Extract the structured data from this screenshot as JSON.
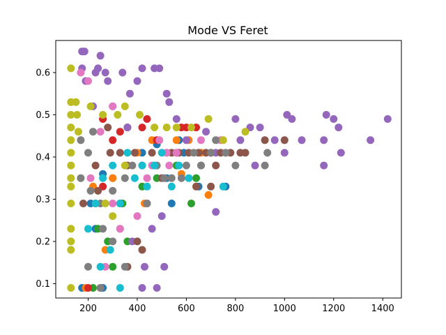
{
  "chart_data": {
    "type": "scatter",
    "title": "Mode VS Feret",
    "xlabel": "",
    "ylabel": "",
    "xlim": [
      68,
      1476
    ],
    "ylim": [
      0.066,
      0.676
    ],
    "xticks": [
      200,
      400,
      600,
      800,
      1000,
      1200,
      1400
    ],
    "yticks": [
      0.1,
      0.2,
      0.3,
      0.4,
      0.5,
      0.6
    ],
    "grid": false,
    "legend": "none",
    "marker_radius_hint": "medium",
    "series": [
      {
        "name": "",
        "color": "#1f77b4",
        "points": [
          [
            175,
            0.09
          ],
          [
            260,
            0.09
          ],
          [
            210,
            0.29
          ],
          [
            260,
            0.36
          ],
          [
            300,
            0.35
          ],
          [
            420,
            0.41
          ],
          [
            480,
            0.43
          ],
          [
            520,
            0.35
          ],
          [
            570,
            0.44
          ],
          [
            590,
            0.41
          ],
          [
            650,
            0.33
          ],
          [
            760,
            0.33
          ],
          [
            540,
            0.29
          ],
          [
            230,
            0.23
          ]
        ]
      },
      {
        "name": "",
        "color": "#ff7f0e",
        "points": [
          [
            190,
            0.09
          ],
          [
            270,
            0.18
          ],
          [
            220,
            0.33
          ],
          [
            300,
            0.35
          ],
          [
            400,
            0.41
          ],
          [
            460,
            0.44
          ],
          [
            520,
            0.41
          ],
          [
            580,
            0.36
          ],
          [
            560,
            0.44
          ],
          [
            610,
            0.44
          ],
          [
            660,
            0.41
          ],
          [
            690,
            0.31
          ],
          [
            430,
            0.29
          ],
          [
            330,
            0.23
          ]
        ]
      },
      {
        "name": "",
        "color": "#2ca02c",
        "points": [
          [
            220,
            0.09
          ],
          [
            300,
            0.14
          ],
          [
            280,
            0.2
          ],
          [
            340,
            0.29
          ],
          [
            420,
            0.33
          ],
          [
            480,
            0.35
          ],
          [
            520,
            0.41
          ],
          [
            620,
            0.29
          ],
          [
            640,
            0.35
          ],
          [
            660,
            0.38
          ],
          [
            700,
            0.41
          ],
          [
            560,
            0.38
          ],
          [
            240,
            0.23
          ],
          [
            360,
            0.2
          ]
        ]
      },
      {
        "name": "",
        "color": "#d62728",
        "points": [
          [
            200,
            0.09
          ],
          [
            260,
            0.33
          ],
          [
            300,
            0.44
          ],
          [
            330,
            0.46
          ],
          [
            360,
            0.47
          ],
          [
            420,
            0.47
          ],
          [
            440,
            0.49
          ],
          [
            480,
            0.44
          ],
          [
            580,
            0.47
          ],
          [
            600,
            0.47
          ],
          [
            640,
            0.47
          ],
          [
            560,
            0.41
          ],
          [
            700,
            0.41
          ],
          [
            260,
            0.49
          ],
          [
            230,
            0.29
          ]
        ]
      },
      {
        "name": "",
        "color": "#9467bd",
        "points": [
          [
            175,
            0.65
          ],
          [
            185,
            0.65
          ],
          [
            175,
            0.61
          ],
          [
            190,
            0.58
          ],
          [
            230,
            0.6
          ],
          [
            250,
            0.64
          ],
          [
            240,
            0.61
          ],
          [
            270,
            0.6
          ],
          [
            280,
            0.58
          ],
          [
            340,
            0.6
          ],
          [
            370,
            0.55
          ],
          [
            400,
            0.58
          ],
          [
            420,
            0.61
          ],
          [
            470,
            0.61
          ],
          [
            490,
            0.61
          ],
          [
            520,
            0.55
          ],
          [
            530,
            0.53
          ],
          [
            560,
            0.49
          ],
          [
            600,
            0.44
          ],
          [
            680,
            0.46
          ],
          [
            720,
            0.41
          ],
          [
            800,
            0.49
          ],
          [
            820,
            0.44
          ],
          [
            860,
            0.47
          ],
          [
            900,
            0.47
          ],
          [
            960,
            0.44
          ],
          [
            1000,
            0.41
          ],
          [
            1010,
            0.5
          ],
          [
            1030,
            0.49
          ],
          [
            1070,
            0.44
          ],
          [
            1160,
            0.44
          ],
          [
            1170,
            0.5
          ],
          [
            1200,
            0.49
          ],
          [
            1220,
            0.47
          ],
          [
            1230,
            0.41
          ],
          [
            1350,
            0.44
          ],
          [
            1420,
            0.49
          ],
          [
            1160,
            0.38
          ],
          [
            880,
            0.38
          ],
          [
            720,
            0.27
          ],
          [
            500,
            0.26
          ],
          [
            510,
            0.14
          ],
          [
            480,
            0.09
          ],
          [
            430,
            0.14
          ],
          [
            420,
            0.09
          ],
          [
            380,
            0.2
          ],
          [
            460,
            0.23
          ],
          [
            220,
            0.52
          ],
          [
            300,
            0.52
          ],
          [
            360,
            0.47
          ]
        ]
      },
      {
        "name": "",
        "color": "#8c564b",
        "points": [
          [
            180,
            0.29
          ],
          [
            240,
            0.32
          ],
          [
            290,
            0.41
          ],
          [
            330,
            0.41
          ],
          [
            360,
            0.38
          ],
          [
            390,
            0.41
          ],
          [
            420,
            0.38
          ],
          [
            460,
            0.41
          ],
          [
            500,
            0.35
          ],
          [
            540,
            0.41
          ],
          [
            570,
            0.41
          ],
          [
            610,
            0.41
          ],
          [
            650,
            0.41
          ],
          [
            680,
            0.41
          ],
          [
            720,
            0.38
          ],
          [
            740,
            0.41
          ],
          [
            780,
            0.41
          ],
          [
            820,
            0.41
          ],
          [
            840,
            0.41
          ],
          [
            920,
            0.44
          ],
          [
            1000,
            0.44
          ],
          [
            640,
            0.33
          ],
          [
            700,
            0.33
          ],
          [
            330,
            0.29
          ],
          [
            400,
            0.2
          ],
          [
            420,
            0.18
          ],
          [
            360,
            0.14
          ],
          [
            230,
            0.38
          ],
          [
            280,
            0.47
          ]
        ]
      },
      {
        "name": "",
        "color": "#e377c2",
        "points": [
          [
            170,
            0.6
          ],
          [
            200,
            0.58
          ],
          [
            250,
            0.46
          ],
          [
            250,
            0.09
          ],
          [
            270,
            0.14
          ],
          [
            300,
            0.29
          ],
          [
            330,
            0.23
          ],
          [
            400,
            0.26
          ],
          [
            440,
            0.35
          ],
          [
            460,
            0.38
          ],
          [
            490,
            0.44
          ],
          [
            520,
            0.41
          ],
          [
            530,
            0.38
          ],
          [
            560,
            0.41
          ],
          [
            660,
            0.44
          ],
          [
            740,
            0.44
          ],
          [
            760,
            0.41
          ],
          [
            440,
            0.29
          ],
          [
            210,
            0.35
          ],
          [
            300,
            0.52
          ]
        ]
      },
      {
        "name": "",
        "color": "#7f7f7f",
        "points": [
          [
            170,
            0.35
          ],
          [
            210,
            0.32
          ],
          [
            250,
            0.29
          ],
          [
            300,
            0.32
          ],
          [
            350,
            0.35
          ],
          [
            380,
            0.38
          ],
          [
            440,
            0.29
          ],
          [
            480,
            0.38
          ],
          [
            510,
            0.35
          ],
          [
            540,
            0.35
          ],
          [
            580,
            0.35
          ],
          [
            600,
            0.38
          ],
          [
            630,
            0.41
          ],
          [
            660,
            0.38
          ],
          [
            700,
            0.41
          ],
          [
            720,
            0.44
          ],
          [
            760,
            0.41
          ],
          [
            800,
            0.38
          ],
          [
            920,
            0.38
          ],
          [
            930,
            0.41
          ],
          [
            200,
            0.14
          ],
          [
            250,
            0.09
          ],
          [
            300,
            0.2
          ],
          [
            350,
            0.14
          ],
          [
            200,
            0.41
          ],
          [
            170,
            0.44
          ],
          [
            220,
            0.46
          ],
          [
            260,
            0.23
          ]
        ]
      },
      {
        "name": "",
        "color": "#bcbd22",
        "points": [
          [
            130,
            0.61
          ],
          [
            130,
            0.53
          ],
          [
            130,
            0.5
          ],
          [
            130,
            0.47
          ],
          [
            130,
            0.44
          ],
          [
            130,
            0.41
          ],
          [
            130,
            0.38
          ],
          [
            130,
            0.35
          ],
          [
            130,
            0.33
          ],
          [
            130,
            0.29
          ],
          [
            130,
            0.23
          ],
          [
            130,
            0.2
          ],
          [
            130,
            0.18
          ],
          [
            130,
            0.09
          ],
          [
            150,
            0.53
          ],
          [
            155,
            0.5
          ],
          [
            160,
            0.46
          ],
          [
            210,
            0.52
          ],
          [
            260,
            0.5
          ],
          [
            320,
            0.5
          ],
          [
            350,
            0.52
          ],
          [
            410,
            0.5
          ],
          [
            470,
            0.47
          ],
          [
            520,
            0.47
          ],
          [
            560,
            0.47
          ],
          [
            620,
            0.47
          ],
          [
            690,
            0.49
          ],
          [
            750,
            0.44
          ],
          [
            840,
            0.46
          ],
          [
            270,
            0.29
          ],
          [
            300,
            0.26
          ],
          [
            350,
            0.38
          ]
        ]
      },
      {
        "name": "",
        "color": "#17becf",
        "points": [
          [
            200,
            0.23
          ],
          [
            230,
            0.29
          ],
          [
            260,
            0.35
          ],
          [
            300,
            0.38
          ],
          [
            330,
            0.29
          ],
          [
            360,
            0.41
          ],
          [
            390,
            0.35
          ],
          [
            420,
            0.38
          ],
          [
            440,
            0.33
          ],
          [
            470,
            0.38
          ],
          [
            500,
            0.41
          ],
          [
            540,
            0.33
          ],
          [
            570,
            0.38
          ],
          [
            610,
            0.35
          ],
          [
            750,
            0.33
          ],
          [
            250,
            0.14
          ],
          [
            290,
            0.18
          ],
          [
            330,
            0.09
          ]
        ]
      }
    ]
  }
}
